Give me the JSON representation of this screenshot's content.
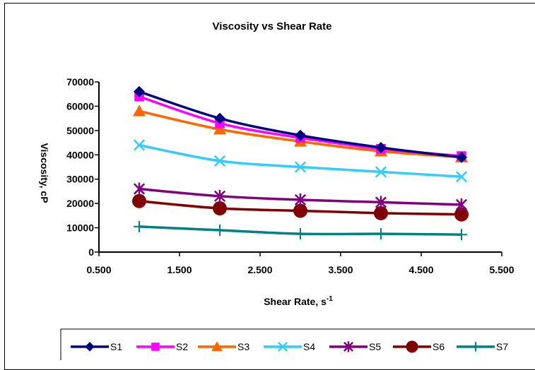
{
  "chart_data": {
    "type": "line",
    "title": "Viscosity vs Shear Rate",
    "xlabel": "Shear Rate, s",
    "xlabel_sup": "-1",
    "ylabel": "Viscosity, cP",
    "xlim": [
      0.5,
      5.5
    ],
    "ylim": [
      0,
      70000
    ],
    "xticks": [
      "0.500",
      "1.500",
      "2.500",
      "3.500",
      "4.500",
      "5.500"
    ],
    "yticks": [
      "0",
      "10000",
      "20000",
      "30000",
      "40000",
      "50000",
      "60000",
      "70000"
    ],
    "grid": false,
    "legend_position": "bottom",
    "x": [
      1,
      2,
      3,
      4,
      5
    ],
    "series": [
      {
        "name": "S1",
        "color": "#000080",
        "marker": "diamond",
        "values": [
          66000,
          55000,
          48000,
          43000,
          39000
        ]
      },
      {
        "name": "S2",
        "color": "#FF00FF",
        "marker": "square",
        "values": [
          64000,
          53000,
          47000,
          42500,
          39500
        ]
      },
      {
        "name": "S3",
        "color": "#FF6600",
        "marker": "triangle",
        "values": [
          58000,
          50500,
          45500,
          41500,
          39000
        ]
      },
      {
        "name": "S4",
        "color": "#33CCFF",
        "marker": "x",
        "values": [
          44000,
          37500,
          35000,
          33000,
          31000
        ]
      },
      {
        "name": "S5",
        "color": "#800080",
        "marker": "star",
        "values": [
          26000,
          23000,
          21500,
          20500,
          19500
        ]
      },
      {
        "name": "S6",
        "color": "#800000",
        "marker": "circle",
        "values": [
          21000,
          18000,
          17000,
          16000,
          15500
        ]
      },
      {
        "name": "S7",
        "color": "#008080",
        "marker": "plus",
        "values": [
          10500,
          9000,
          7500,
          7500,
          7200
        ]
      }
    ]
  }
}
